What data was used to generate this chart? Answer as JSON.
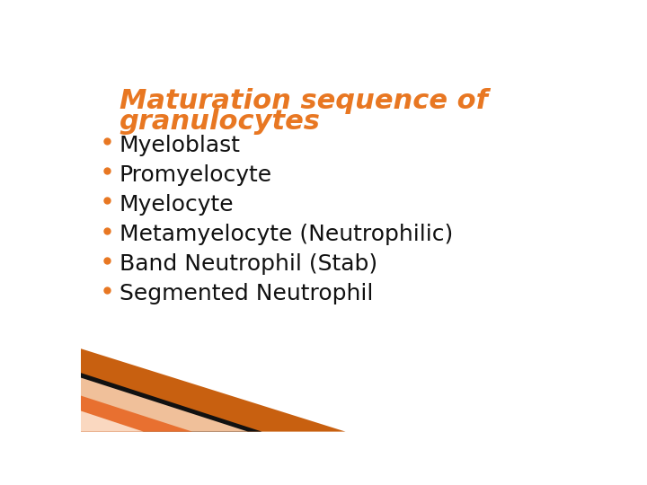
{
  "title_line1": "Maturation sequence of",
  "title_line2": "granulocytes",
  "title_color": "#E87722",
  "title_fontsize": 22,
  "bullet_items": [
    "Myeloblast",
    "Promyelocyte",
    "Myelocyte",
    "Metamyelocyte (Neutrophilic)",
    "Band Neutrophil (Stab)",
    "Segmented Neutrophil"
  ],
  "bullet_color": "#E87722",
  "text_color": "#111111",
  "bullet_fontsize": 18,
  "background_color": "#ffffff",
  "stripe_colors": [
    "#C86010",
    "#000000",
    "#F5A060",
    "#FAD0B0"
  ],
  "fig_width": 7.2,
  "fig_height": 5.4,
  "dpi": 100
}
